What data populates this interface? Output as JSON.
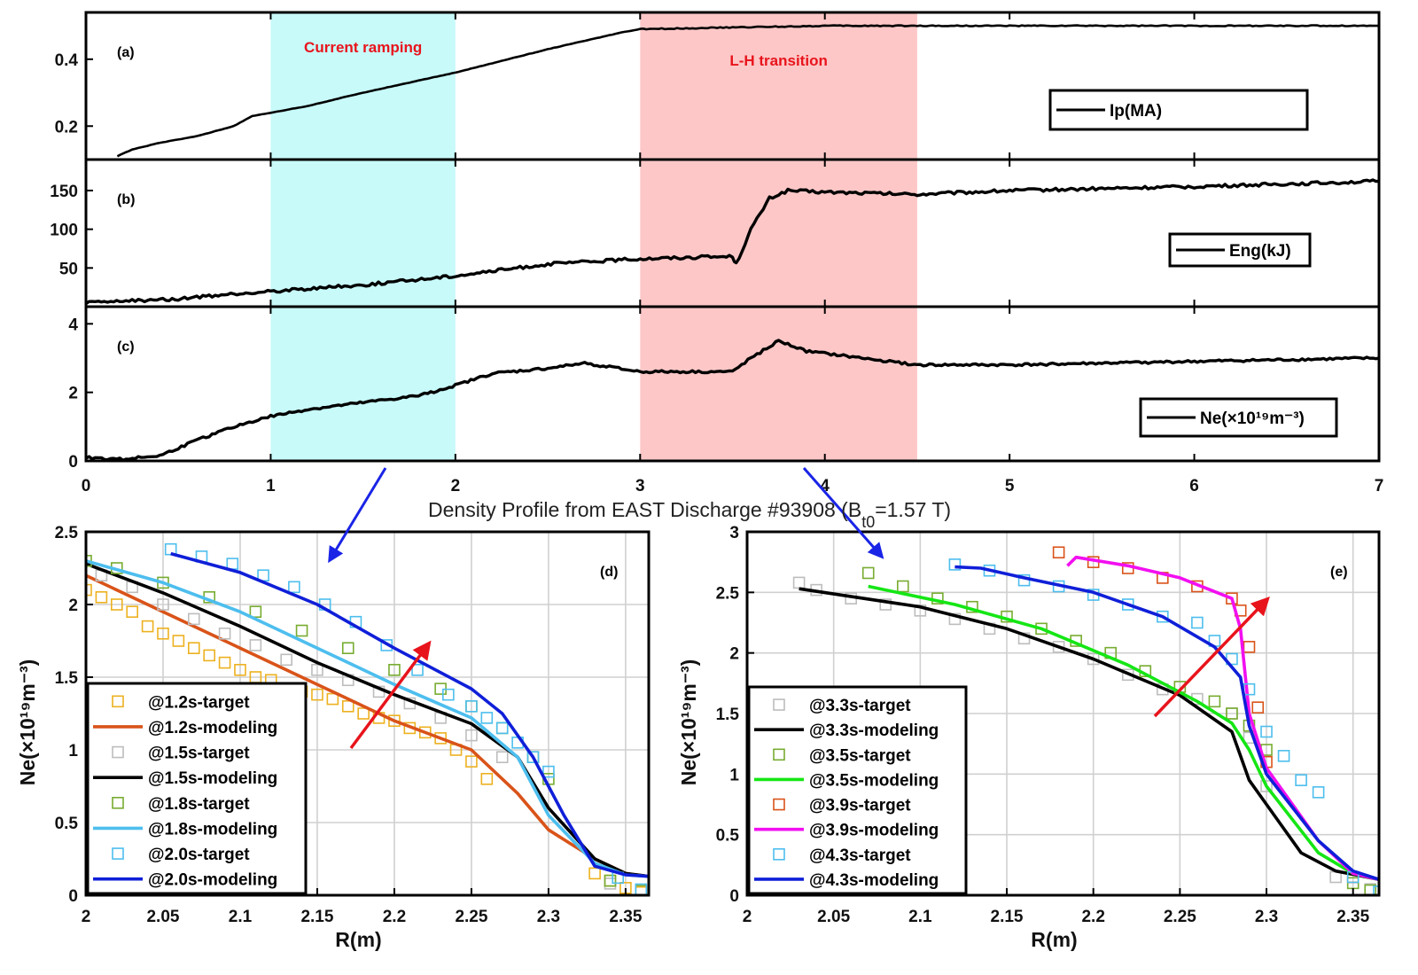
{
  "figure": {
    "mid_title": "Density Profile from EAST Discharge #93908 (B",
    "mid_title_sub": "t0",
    "mid_title_tail": "=1.57 T)"
  },
  "colors": {
    "current_ramping_band": "#c8fafa",
    "lh_transition_band": "#fdc7c7",
    "band_label": "#e8141c",
    "arrow_red": "#e8141c",
    "arrow_blue": "#1a24e6",
    "c_1_2": "#d95319",
    "c_1_2_marker": "#edb120",
    "c_1_5_marker": "#bdbdbd",
    "c_1_8": "#4dbeee",
    "c_1_8_marker": "#77ac30",
    "c_2_0": "#0f1fd8",
    "c_2_0_marker": "#4dbeee",
    "c_3_5": "#15e615",
    "c_3_9": "#f20ff0",
    "c_3_9_marker": "#d95319"
  },
  "chart_data": [
    {
      "id": "a",
      "type": "line",
      "panel_label": "(a)",
      "xlim": [
        0,
        7
      ],
      "ylim": [
        0.1,
        0.54
      ],
      "yticks": [
        0.2,
        0.4
      ],
      "ytick_labels": [
        "0.2",
        "0.4"
      ],
      "bands": [
        {
          "x": [
            1,
            2
          ],
          "label": "Current ramping",
          "color": "cyan"
        },
        {
          "x": [
            3,
            4.5
          ],
          "label": "L-H transition",
          "color": "pink"
        }
      ],
      "series": [
        {
          "name": "Ip(MA)",
          "x": [
            0.17,
            0.25,
            0.4,
            0.6,
            0.8,
            0.9,
            1.0,
            1.2,
            1.5,
            2.0,
            2.5,
            2.9,
            3.0,
            3.5,
            4.0,
            5.0,
            6.0,
            7.0
          ],
          "y": [
            0.11,
            0.13,
            0.15,
            0.17,
            0.2,
            0.23,
            0.24,
            0.26,
            0.3,
            0.36,
            0.43,
            0.48,
            0.49,
            0.495,
            0.5,
            0.5,
            0.5,
            0.5
          ]
        }
      ]
    },
    {
      "id": "b",
      "type": "line",
      "panel_label": "(b)",
      "xlim": [
        0,
        7
      ],
      "ylim": [
        0,
        190
      ],
      "yticks": [
        50,
        100,
        150
      ],
      "ytick_labels": [
        "50",
        "100",
        "150"
      ],
      "series": [
        {
          "name": "Eng(kJ)",
          "x": [
            0,
            0.5,
            1.0,
            1.5,
            2.0,
            2.5,
            3.0,
            3.5,
            3.52,
            3.6,
            3.7,
            3.8,
            4.0,
            4.5,
            5.0,
            6.0,
            7.0
          ],
          "y": [
            5,
            10,
            20,
            28,
            40,
            55,
            62,
            65,
            55,
            100,
            140,
            150,
            148,
            145,
            150,
            155,
            162
          ]
        }
      ]
    },
    {
      "id": "c",
      "type": "line",
      "panel_label": "(c)",
      "xlim": [
        0,
        7
      ],
      "ylim": [
        0,
        4.5
      ],
      "yticks": [
        0,
        2,
        4
      ],
      "ytick_labels": [
        "0",
        "2",
        "4"
      ],
      "xticks": [
        0,
        1,
        2,
        3,
        4,
        5,
        6,
        7
      ],
      "xtick_labels": [
        "0",
        "1",
        "2",
        "3",
        "4",
        "5",
        "6",
        "7"
      ],
      "series": [
        {
          "name": "Ne(×10¹⁹m⁻³)",
          "x": [
            0,
            0.2,
            0.4,
            0.6,
            0.8,
            1.0,
            1.2,
            1.5,
            1.8,
            2.0,
            2.2,
            2.5,
            2.7,
            3.0,
            3.5,
            3.6,
            3.75,
            3.9,
            4.2,
            4.5,
            5.0,
            6.0,
            7.0
          ],
          "y": [
            0.1,
            0.05,
            0.15,
            0.6,
            1.0,
            1.3,
            1.5,
            1.7,
            1.9,
            2.2,
            2.55,
            2.7,
            2.85,
            2.6,
            2.6,
            3.0,
            3.5,
            3.2,
            3.0,
            2.8,
            2.8,
            2.9,
            3.0
          ]
        }
      ]
    },
    {
      "id": "d",
      "type": "line",
      "panel_label": "(d)",
      "xlabel": "R(m)",
      "ylabel": "Ne(×10¹⁹m⁻³)",
      "xlim": [
        2,
        2.365
      ],
      "ylim": [
        0,
        2.5
      ],
      "xticks": [
        2,
        2.05,
        2.1,
        2.15,
        2.2,
        2.25,
        2.3,
        2.35
      ],
      "xtick_labels": [
        "2",
        "2.05",
        "2.1",
        "2.15",
        "2.2",
        "2.25",
        "2.3",
        "2.35"
      ],
      "yticks": [
        0,
        0.5,
        1,
        1.5,
        2,
        2.5
      ],
      "ytick_labels": [
        "0",
        "0.5",
        "1",
        "1.5",
        "2",
        "2.5"
      ],
      "series": [
        {
          "name": "@1.2s-target",
          "style": "marker",
          "x": [
            2.0,
            2.01,
            2.02,
            2.03,
            2.04,
            2.05,
            2.06,
            2.07,
            2.08,
            2.09,
            2.1,
            2.11,
            2.12,
            2.13,
            2.14,
            2.15,
            2.16,
            2.17,
            2.18,
            2.19,
            2.2,
            2.21,
            2.22,
            2.23,
            2.24,
            2.25,
            2.26,
            2.33,
            2.34,
            2.35,
            2.36
          ],
          "y": [
            2.1,
            2.05,
            2.0,
            1.95,
            1.85,
            1.8,
            1.75,
            1.7,
            1.65,
            1.6,
            1.55,
            1.5,
            1.48,
            1.42,
            1.4,
            1.38,
            1.35,
            1.3,
            1.25,
            1.22,
            1.2,
            1.15,
            1.12,
            1.08,
            1.0,
            0.92,
            0.8,
            0.15,
            0.1,
            0.05,
            0.02
          ]
        },
        {
          "name": "@1.2s-modeling",
          "style": "line",
          "x": [
            2.0,
            2.05,
            2.1,
            2.15,
            2.2,
            2.25,
            2.28,
            2.3,
            2.33,
            2.35,
            2.365
          ],
          "y": [
            2.2,
            1.95,
            1.7,
            1.45,
            1.2,
            1.0,
            0.7,
            0.45,
            0.25,
            0.15,
            0.13
          ]
        },
        {
          "name": "@1.5s-target",
          "style": "marker",
          "x": [
            2.01,
            2.03,
            2.05,
            2.07,
            2.09,
            2.11,
            2.13,
            2.15,
            2.17,
            2.19,
            2.21,
            2.23,
            2.25,
            2.27,
            2.34,
            2.36
          ],
          "y": [
            2.2,
            2.12,
            2.0,
            1.9,
            1.8,
            1.72,
            1.62,
            1.55,
            1.48,
            1.4,
            1.32,
            1.22,
            1.1,
            0.95,
            0.08,
            0.03
          ]
        },
        {
          "name": "@1.5s-modeling",
          "style": "line",
          "x": [
            2.0,
            2.05,
            2.1,
            2.15,
            2.2,
            2.25,
            2.28,
            2.3,
            2.33,
            2.35,
            2.365
          ],
          "y": [
            2.28,
            2.08,
            1.85,
            1.6,
            1.38,
            1.18,
            0.95,
            0.6,
            0.25,
            0.15,
            0.13
          ]
        },
        {
          "name": "@1.8s-target",
          "style": "marker",
          "x": [
            2.0,
            2.02,
            2.05,
            2.08,
            2.11,
            2.14,
            2.17,
            2.2,
            2.23,
            2.25,
            2.27,
            2.29,
            2.3,
            2.34,
            2.36
          ],
          "y": [
            2.3,
            2.25,
            2.15,
            2.05,
            1.95,
            1.82,
            1.7,
            1.55,
            1.42,
            1.3,
            1.15,
            0.95,
            0.8,
            0.1,
            0.03
          ]
        },
        {
          "name": "@1.8s-modeling",
          "style": "line",
          "x": [
            2.0,
            2.05,
            2.1,
            2.15,
            2.2,
            2.25,
            2.28,
            2.3,
            2.33,
            2.35,
            2.365
          ],
          "y": [
            2.3,
            2.15,
            1.95,
            1.7,
            1.45,
            1.22,
            0.95,
            0.55,
            0.22,
            0.14,
            0.13
          ]
        },
        {
          "name": "@2.0s-target",
          "style": "marker",
          "x": [
            2.055,
            2.075,
            2.095,
            2.115,
            2.135,
            2.155,
            2.175,
            2.195,
            2.215,
            2.235,
            2.25,
            2.26,
            2.27,
            2.28,
            2.29,
            2.3,
            2.345,
            2.36
          ],
          "y": [
            2.38,
            2.33,
            2.28,
            2.2,
            2.12,
            2.0,
            1.88,
            1.72,
            1.55,
            1.38,
            1.3,
            1.22,
            1.15,
            1.05,
            0.95,
            0.85,
            0.12,
            0.04
          ]
        },
        {
          "name": "@2.0s-modeling",
          "style": "line",
          "x": [
            2.055,
            2.1,
            2.15,
            2.2,
            2.25,
            2.27,
            2.29,
            2.31,
            2.33,
            2.35,
            2.365
          ],
          "y": [
            2.35,
            2.22,
            2.0,
            1.7,
            1.42,
            1.25,
            0.95,
            0.55,
            0.2,
            0.14,
            0.13
          ]
        }
      ]
    },
    {
      "id": "e",
      "type": "line",
      "panel_label": "(e)",
      "xlabel": "R(m)",
      "ylabel": "Ne(×10¹⁹m⁻³)",
      "xlim": [
        2,
        2.365
      ],
      "ylim": [
        0,
        3
      ],
      "xticks": [
        2,
        2.05,
        2.1,
        2.15,
        2.2,
        2.25,
        2.3,
        2.35
      ],
      "xtick_labels": [
        "2",
        "2.05",
        "2.1",
        "2.15",
        "2.2",
        "2.25",
        "2.3",
        "2.35"
      ],
      "yticks": [
        0,
        0.5,
        1,
        1.5,
        2,
        2.5,
        3
      ],
      "ytick_labels": [
        "0",
        "0.5",
        "1",
        "1.5",
        "2",
        "2.5",
        "3"
      ],
      "series": [
        {
          "name": "@3.3s-target",
          "style": "marker",
          "x": [
            2.03,
            2.04,
            2.06,
            2.08,
            2.1,
            2.12,
            2.14,
            2.16,
            2.18,
            2.2,
            2.22,
            2.24,
            2.26,
            2.28,
            2.29,
            2.3,
            2.34,
            2.36
          ],
          "y": [
            2.58,
            2.52,
            2.45,
            2.4,
            2.35,
            2.28,
            2.2,
            2.12,
            2.05,
            1.95,
            1.82,
            1.7,
            1.62,
            1.5,
            1.3,
            0.9,
            0.15,
            0.05
          ]
        },
        {
          "name": "@3.3s-modeling",
          "style": "line",
          "x": [
            2.03,
            2.1,
            2.15,
            2.2,
            2.25,
            2.28,
            2.29,
            2.3,
            2.32,
            2.34,
            2.365
          ],
          "y": [
            2.53,
            2.38,
            2.2,
            1.95,
            1.65,
            1.35,
            0.95,
            0.75,
            0.35,
            0.2,
            0.13
          ]
        },
        {
          "name": "@3.5s-target",
          "style": "marker",
          "x": [
            2.07,
            2.09,
            2.11,
            2.13,
            2.15,
            2.17,
            2.19,
            2.21,
            2.23,
            2.25,
            2.27,
            2.28,
            2.29,
            2.3,
            2.35,
            2.36
          ],
          "y": [
            2.66,
            2.55,
            2.45,
            2.38,
            2.3,
            2.2,
            2.1,
            2.0,
            1.85,
            1.72,
            1.6,
            1.5,
            1.4,
            1.2,
            0.1,
            0.04
          ]
        },
        {
          "name": "@3.5s-modeling",
          "style": "line",
          "x": [
            2.07,
            2.12,
            2.17,
            2.22,
            2.26,
            2.28,
            2.29,
            2.3,
            2.33,
            2.35,
            2.365
          ],
          "y": [
            2.55,
            2.4,
            2.2,
            1.9,
            1.6,
            1.42,
            1.2,
            0.9,
            0.35,
            0.18,
            0.13
          ]
        },
        {
          "name": "@3.9s-target",
          "style": "marker",
          "x": [
            2.18,
            2.2,
            2.22,
            2.24,
            2.26,
            2.28,
            2.285,
            2.29,
            2.295,
            2.3,
            2.35
          ],
          "y": [
            2.83,
            2.75,
            2.7,
            2.62,
            2.55,
            2.45,
            2.35,
            2.05,
            1.55,
            1.1,
            0.15
          ]
        },
        {
          "name": "@3.9s-modeling",
          "style": "line",
          "x": [
            2.185,
            2.19,
            2.22,
            2.25,
            2.28,
            2.285,
            2.29,
            2.3,
            2.33,
            2.35,
            2.365
          ],
          "y": [
            2.72,
            2.79,
            2.72,
            2.62,
            2.45,
            2.2,
            1.5,
            1.05,
            0.45,
            0.18,
            0.13
          ]
        },
        {
          "name": "@4.3s-target",
          "style": "marker",
          "x": [
            2.12,
            2.14,
            2.16,
            2.18,
            2.2,
            2.22,
            2.24,
            2.26,
            2.27,
            2.28,
            2.29,
            2.3,
            2.31,
            2.32,
            2.33,
            2.35,
            2.365
          ],
          "y": [
            2.73,
            2.68,
            2.6,
            2.55,
            2.48,
            2.4,
            2.3,
            2.25,
            2.1,
            1.95,
            1.7,
            1.35,
            1.15,
            0.95,
            0.85,
            0.15,
            0.03
          ]
        },
        {
          "name": "@4.3s-modeling",
          "style": "line",
          "x": [
            2.12,
            2.135,
            2.16,
            2.2,
            2.24,
            2.27,
            2.285,
            2.29,
            2.3,
            2.33,
            2.35,
            2.365
          ],
          "y": [
            2.71,
            2.7,
            2.62,
            2.5,
            2.3,
            2.05,
            1.8,
            1.4,
            1.0,
            0.45,
            0.2,
            0.13
          ]
        }
      ]
    }
  ]
}
